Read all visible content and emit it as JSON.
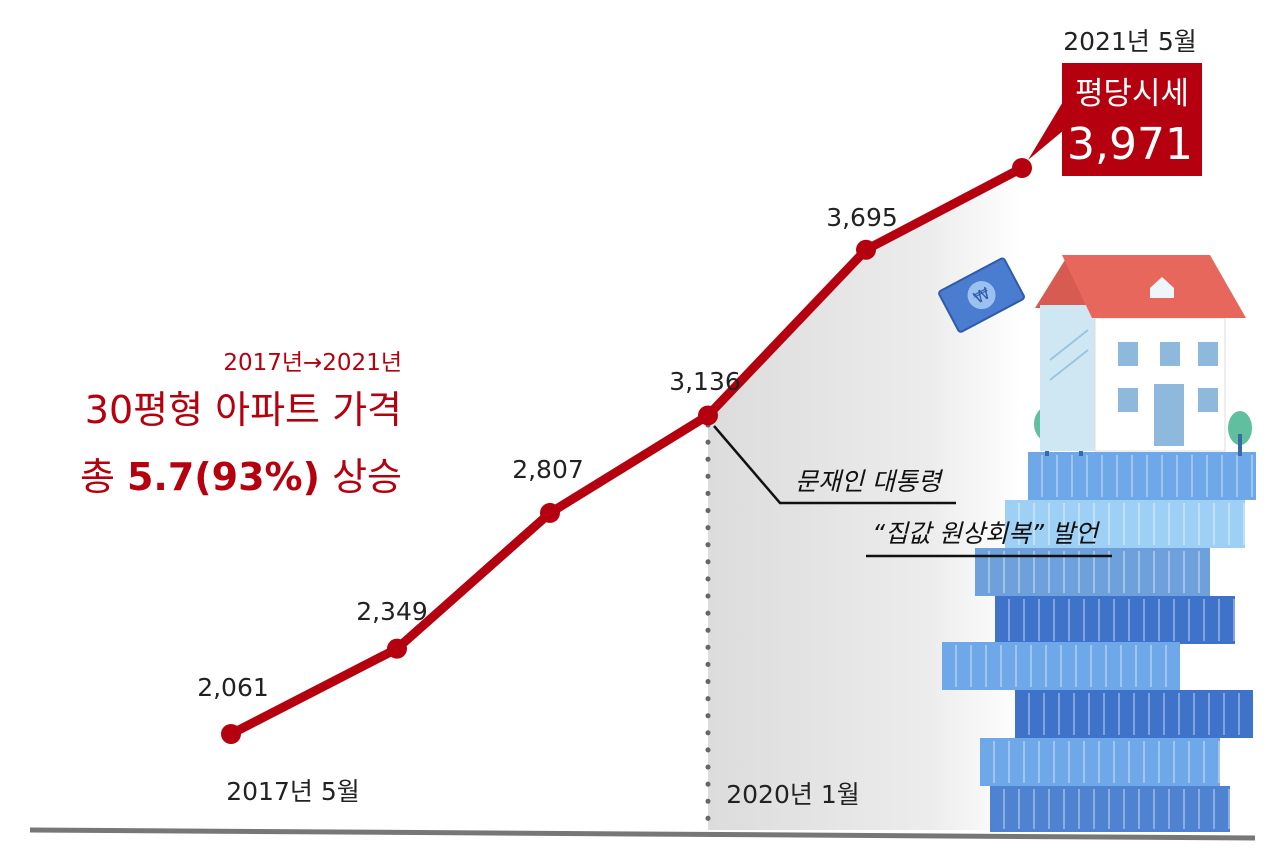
{
  "headline": {
    "period": "2017년→2021년",
    "line1": "30평형 아파트 가격",
    "line2_prefix": "총 ",
    "line2_bold": "5.7(93%)",
    "line2_suffix": " 상승"
  },
  "callout": {
    "date": "2021년 5월",
    "label": "평당시세",
    "value": "3,971"
  },
  "annotation": {
    "line1": "문재인 대통령",
    "line2": "“집값 원상회복” 발언"
  },
  "axis_labels": {
    "start": "2017년 5월",
    "mid": "2020년 1월"
  },
  "colors": {
    "accent": "#b5000f",
    "callout_bg": "#b5000f",
    "text": "#222222",
    "shade": "#e6e6e6"
  },
  "chart_data": {
    "type": "line",
    "title": "30평형 아파트 가격",
    "xlabel": "",
    "ylabel": "",
    "grid": false,
    "ylim": [
      1800,
      4100
    ],
    "points": [
      {
        "label": "2,061",
        "value": 2061
      },
      {
        "label": "2,349",
        "value": 2349
      },
      {
        "label": "2,807",
        "value": 2807
      },
      {
        "label": "3,136",
        "value": 3136
      },
      {
        "label": "3,695",
        "value": 3695
      },
      {
        "label": "",
        "value": 3971
      }
    ]
  }
}
